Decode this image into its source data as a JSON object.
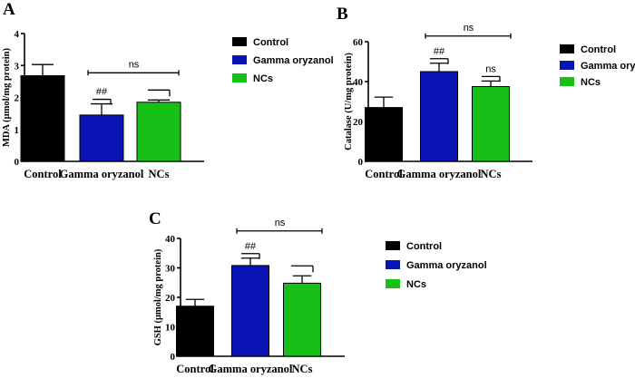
{
  "chart_data": [
    {
      "panel": "A",
      "type": "bar",
      "ylabel": "MDA (μmol/mg protein)",
      "ylim": [
        0,
        4
      ],
      "yticks": [
        0,
        1,
        2,
        3,
        4
      ],
      "categories": [
        "Control",
        "Gamma oryzanol",
        "NCs"
      ],
      "values": [
        2.68,
        1.45,
        1.85
      ],
      "errors": [
        0.35,
        0.35,
        0.07
      ],
      "colors": [
        "#000000",
        "#0a14b4",
        "#16c016"
      ],
      "legend": [
        "Control",
        "Gamma oryzanol",
        "NCs"
      ],
      "annotations": [
        {
          "text": "##",
          "target": 1,
          "type": "mark"
        },
        {
          "text": "ns",
          "from": 1,
          "to": 2,
          "type": "bracket"
        },
        {
          "type": "tick",
          "target": 2
        }
      ]
    },
    {
      "panel": "B",
      "type": "bar",
      "ylabel": "Catalase (U/mg protein)",
      "ylim": [
        0,
        60
      ],
      "yticks": [
        0,
        20,
        40,
        60
      ],
      "categories": [
        "Control",
        "Gamma oryzanol",
        "NCs"
      ],
      "values": [
        27,
        45,
        37.5
      ],
      "errors": [
        5.2,
        4.2,
        2.8
      ],
      "colors": [
        "#000000",
        "#0a14b4",
        "#16c016"
      ],
      "legend": [
        "Control",
        "Gamma oryzanol",
        "NCs"
      ],
      "annotations": [
        {
          "text": "##",
          "target": 1,
          "type": "mark"
        },
        {
          "text": "ns",
          "from": 1,
          "to": 2,
          "type": "bracket"
        },
        {
          "text": "ns",
          "target": 2,
          "type": "mark"
        }
      ]
    },
    {
      "panel": "C",
      "type": "bar",
      "ylabel": "GSH (μmol/mg protein)",
      "ylim": [
        0,
        40
      ],
      "yticks": [
        0,
        10,
        20,
        30,
        40
      ],
      "categories": [
        "Control",
        "Gamma oryzanol",
        "NCs"
      ],
      "values": [
        17,
        30.8,
        24.8
      ],
      "errors": [
        2.3,
        2.5,
        2.5
      ],
      "colors": [
        "#000000",
        "#0a14b4",
        "#16c016"
      ],
      "legend": [
        "Control",
        "Gamma oryzanol",
        "NCs"
      ],
      "annotations": [
        {
          "text": "##",
          "target": 1,
          "type": "mark"
        },
        {
          "text": "ns",
          "from": 1,
          "to": 2,
          "type": "bracket"
        },
        {
          "type": "tick",
          "target": 2
        }
      ]
    }
  ]
}
